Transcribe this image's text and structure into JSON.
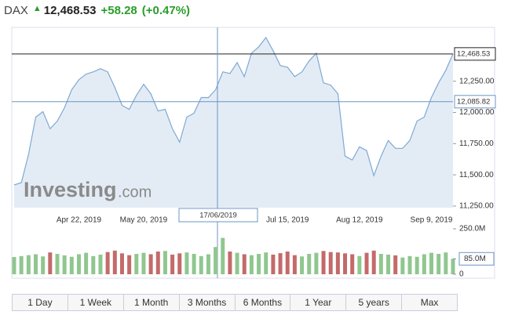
{
  "header": {
    "symbol": "DAX",
    "price": "12,468.53",
    "change": "+58.28",
    "change_pct": "(+0.47%)"
  },
  "watermark": [
    "Investing",
    ".com"
  ],
  "crosshair": {
    "date_label": "17/06/2019",
    "value": 12085.82,
    "value_label": "12,085.82"
  },
  "chart_data": [
    {
      "type": "area",
      "color": "#7fa9d4",
      "fill": "#e3ecf5",
      "categories": [
        null,
        null,
        null,
        null,
        null,
        null,
        null,
        null,
        null,
        "Apr 22, 2019",
        null,
        null,
        null,
        null,
        null,
        null,
        null,
        null,
        "May 20, 2019",
        null,
        null,
        null,
        null,
        null,
        null,
        null,
        null,
        null,
        null,
        null,
        null,
        null,
        null,
        null,
        null,
        null,
        null,
        null,
        "Jul 15, 2019",
        null,
        null,
        null,
        null,
        null,
        null,
        null,
        null,
        null,
        "Aug 12, 2019",
        null,
        null,
        null,
        null,
        null,
        null,
        null,
        null,
        null,
        "Sep 9, 2019",
        null,
        null,
        null
      ],
      "values": [
        11419,
        11437,
        11662,
        11962,
        12006,
        11869,
        11931,
        12037,
        12181,
        12262,
        12306,
        12325,
        12350,
        12325,
        12200,
        12056,
        12025,
        12137,
        12225,
        12150,
        12012,
        12025,
        11869,
        11762,
        11962,
        11994,
        12119,
        12119,
        12181,
        12325,
        12312,
        12400,
        12287,
        12475,
        12525,
        12600,
        12494,
        12375,
        12362,
        12287,
        12325,
        12412,
        12475,
        12237,
        12219,
        12150,
        11650,
        11619,
        11725,
        11694,
        11494,
        11650,
        11775,
        11712,
        11712,
        11775,
        11931,
        11962,
        12119,
        12237,
        12337,
        12468.53
      ],
      "last_label": "12,468.53",
      "ylim": [
        11237,
        12681
      ],
      "yticks": [
        {
          "value": 11250,
          "label": "11,250.00"
        },
        {
          "value": 11500,
          "label": "11,500.00"
        },
        {
          "value": 11750,
          "label": "11,750.00"
        },
        {
          "value": 12000,
          "label": "12,000.00"
        },
        {
          "value": 12250,
          "label": "12,250.00"
        }
      ]
    },
    {
      "type": "bar",
      "up_color": "#8fc78f",
      "down_color": "#c46a6a",
      "values": [
        95,
        100,
        105,
        110,
        98,
        120,
        112,
        104,
        96,
        110,
        118,
        100,
        108,
        122,
        130,
        115,
        105,
        112,
        118,
        110,
        125,
        128,
        108,
        115,
        120,
        112,
        100,
        110,
        150,
        200,
        125,
        118,
        110,
        105,
        112,
        120,
        108,
        116,
        125,
        105,
        98,
        112,
        118,
        128,
        122,
        120,
        115,
        110,
        100,
        118,
        130,
        112,
        108,
        104,
        92,
        100,
        96,
        110,
        118,
        112,
        120,
        85
      ],
      "last_label": "85.0M",
      "ylim": [
        0,
        250
      ],
      "yticks": [
        0,
        {
          "value": 250,
          "label": "250.0M"
        }
      ]
    }
  ],
  "range_buttons": [
    "1 Day",
    "1 Week",
    "1 Month",
    "3 Months",
    "6 Months",
    "1 Year",
    "5 years",
    "Max"
  ]
}
